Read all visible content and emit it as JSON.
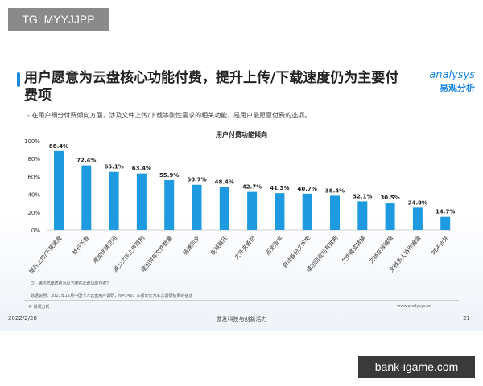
{
  "watermark_top": "TG: MYYJJPP",
  "watermark_bottom": "bank-igame.com",
  "slide": {
    "title": "用户愿意为云盘核心功能付费，提升上传/下载速度仍为主要付费项",
    "subtitle": "-  在用户细分付费倾向方面，涉及文件上传/下载等刚性需求的相关功能，是用户最愿意付费的选项。",
    "logo_en": "analysys",
    "logo_cn": "易观分析",
    "question": "Q：请问您最愿意为以下哪些云盘功能付费？",
    "data_note": "数据说明：2021年12月中国个人云盘用户调研，N=2401  本报论仅为本次调研结果的描述",
    "copyright": "© 易观分析",
    "website": "www.analysys.cn",
    "date": "2022/2/28",
    "slogan": "激发科技与创新活力",
    "page_number": "21"
  },
  "chart_data": {
    "type": "bar",
    "title": "用户付费功能倾向",
    "categories": [
      "提升上传/下载速度",
      "并行下载",
      "增加存储空间",
      "减少文件上传限制",
      "增加转存文件数量",
      "极速同步",
      "在线解压",
      "文件夹备份",
      "历史版本",
      "自动备份文件夹",
      "增加回收站有效期",
      "文件格式转换",
      "文档在线编辑",
      "文档多人协作编辑",
      "PDF合并"
    ],
    "values": [
      88.4,
      72.4,
      65.1,
      63.4,
      55.9,
      50.7,
      48.4,
      42.7,
      41.3,
      40.7,
      38.4,
      32.1,
      30.5,
      24.9,
      14.7
    ],
    "value_labels": [
      "88.4%",
      "72.4%",
      "65.1%",
      "63.4%",
      "55.9%",
      "50.7%",
      "48.4%",
      "42.7%",
      "41.3%",
      "40.7%",
      "38.4%",
      "32.1%",
      "30.5%",
      "24.9%",
      "14.7%"
    ],
    "yticks": [
      "0%",
      "20%",
      "40%",
      "60%",
      "80%",
      "100%"
    ],
    "ylim": [
      0,
      100
    ],
    "unit": "%",
    "grid": false,
    "bar_color": "#1e9be0"
  }
}
